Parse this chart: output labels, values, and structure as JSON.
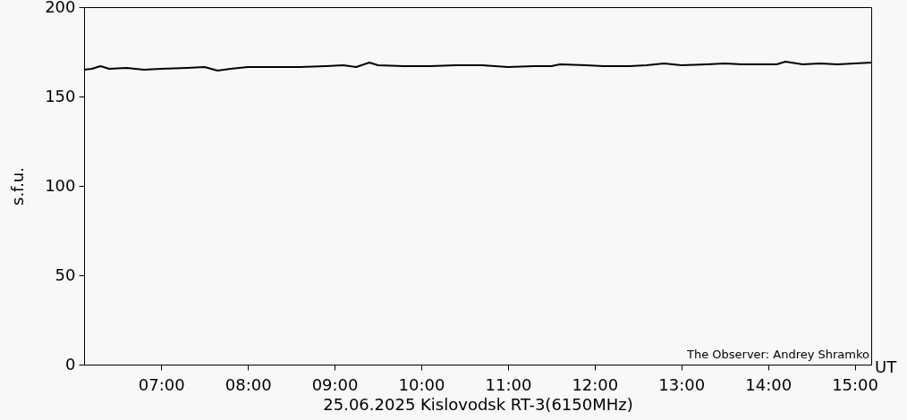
{
  "chart_data": {
    "type": "line",
    "xlabel": "25.06.2025 Kislovodsk RT-3(6150MHz)",
    "ylabel": "s.f.u.",
    "annotations": [
      "The Observer: Andrey Shramko",
      "UT"
    ],
    "x": [
      6.11,
      6.2,
      6.3,
      6.4,
      6.6,
      6.8,
      7.0,
      7.3,
      7.5,
      7.65,
      7.8,
      8.0,
      8.3,
      8.6,
      8.9,
      9.1,
      9.25,
      9.4,
      9.5,
      9.8,
      10.1,
      10.4,
      10.7,
      11.0,
      11.3,
      11.5,
      11.6,
      11.9,
      12.1,
      12.4,
      12.6,
      12.8,
      13.0,
      13.3,
      13.5,
      13.7,
      13.9,
      14.1,
      14.2,
      14.4,
      14.6,
      14.8,
      15.0,
      15.19
    ],
    "series": [
      {
        "color": "#000000",
        "values": [
          165,
          165.5,
          167,
          165.5,
          166,
          165,
          165.5,
          166,
          166.5,
          164.5,
          165.5,
          166.5,
          166.5,
          166.5,
          167,
          167.5,
          166.5,
          169,
          167.5,
          167,
          167,
          167.5,
          167.5,
          166.5,
          167,
          167,
          168,
          167.5,
          167,
          167,
          167.5,
          168.5,
          167.5,
          168,
          168.5,
          168,
          168,
          168,
          169.5,
          168,
          168.5,
          168,
          168.5,
          169
        ]
      }
    ],
    "xlim": [
      6.11,
      15.19
    ],
    "xticks": [
      {
        "value": 7,
        "label": "07:00"
      },
      {
        "value": 8,
        "label": "08:00"
      },
      {
        "value": 9,
        "label": "09:00"
      },
      {
        "value": 10,
        "label": "10:00"
      },
      {
        "value": 11,
        "label": "11:00"
      },
      {
        "value": 12,
        "label": "12:00"
      },
      {
        "value": 13,
        "label": "13:00"
      },
      {
        "value": 14,
        "label": "14:00"
      },
      {
        "value": 15,
        "label": "15:00"
      }
    ],
    "ylim": [
      0,
      200
    ],
    "yticks": [
      0,
      50,
      100,
      150,
      200
    ],
    "grid": false,
    "marker": "none",
    "line_style": "solid"
  }
}
